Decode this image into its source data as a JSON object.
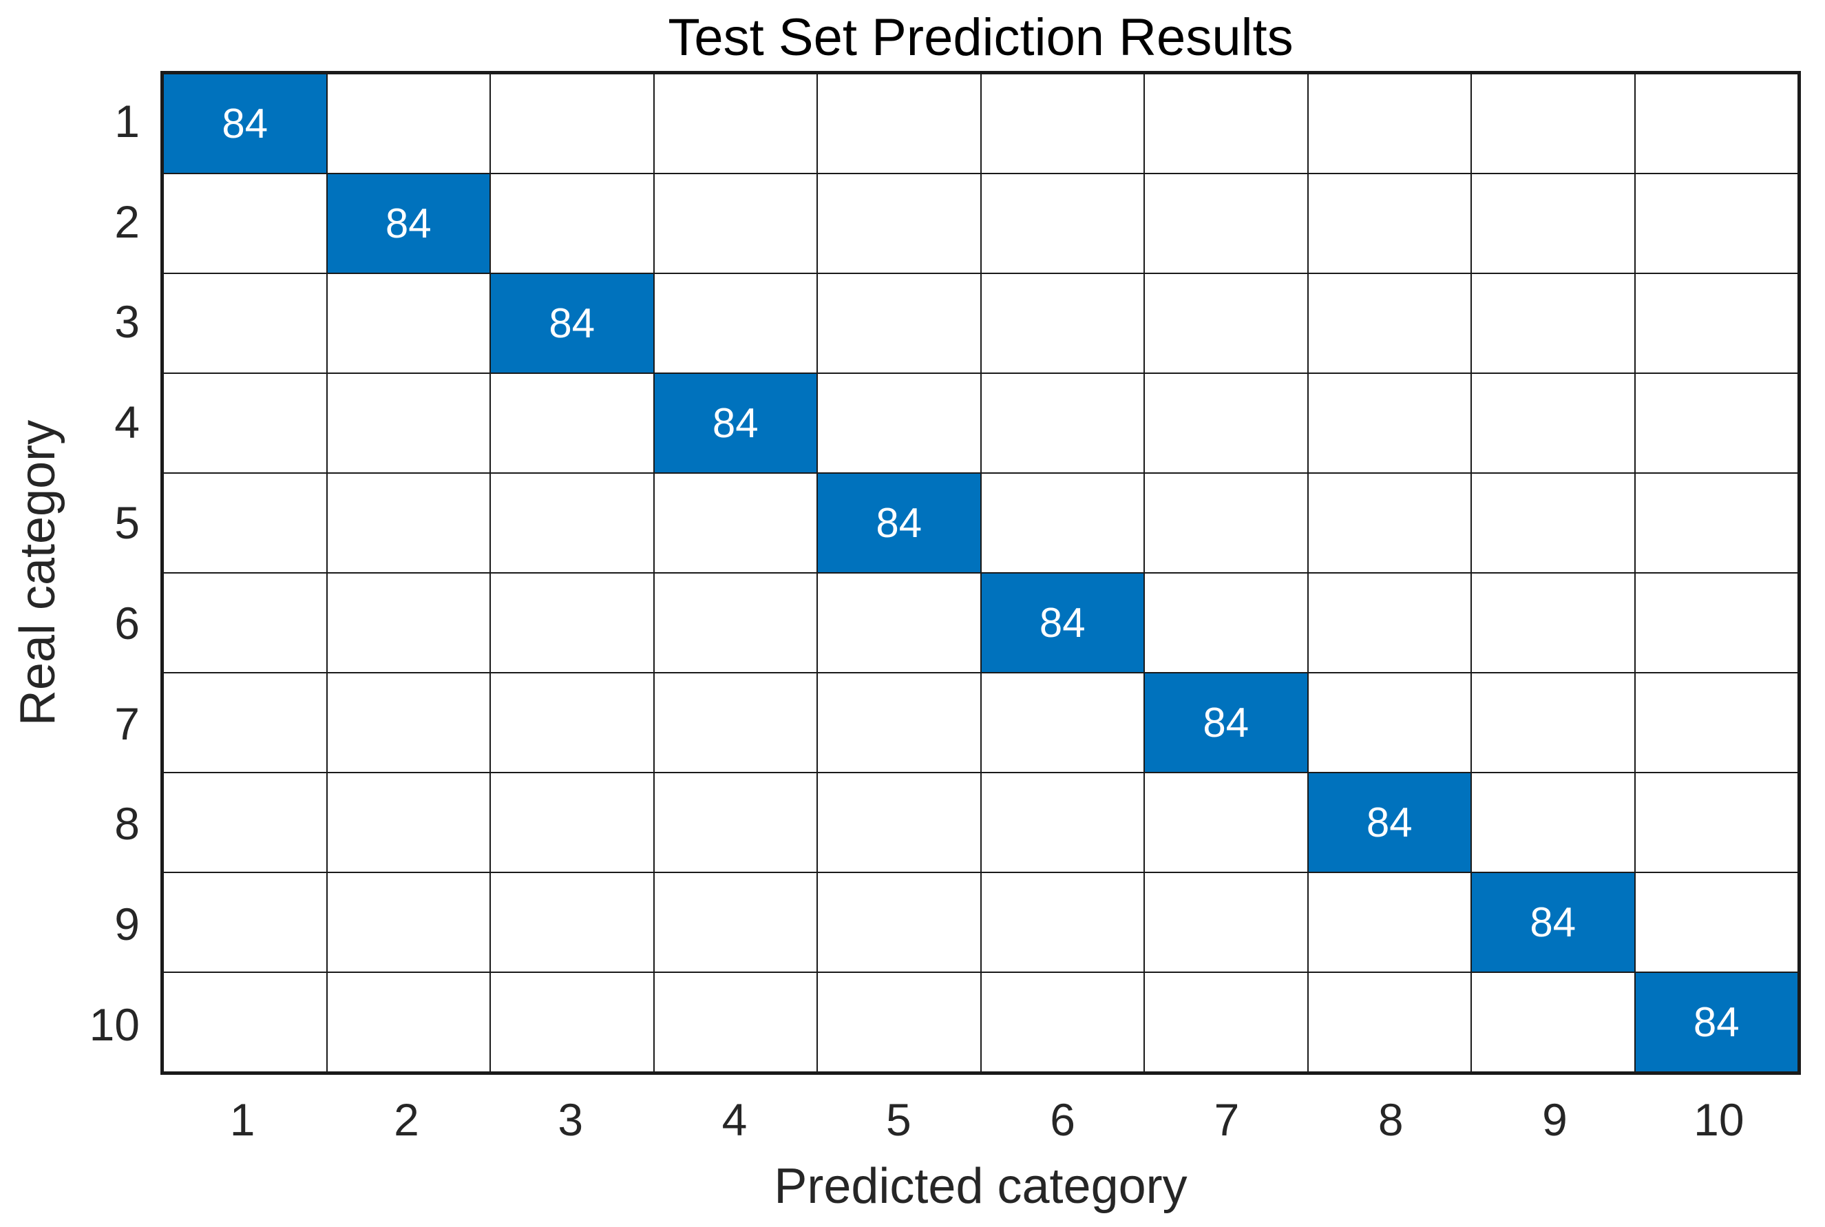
{
  "chart_data": {
    "type": "heatmap",
    "title": "Test Set Prediction Results",
    "xlabel": "Predicted category",
    "ylabel": "Real category",
    "x_tick_labels": [
      "1",
      "2",
      "3",
      "4",
      "5",
      "6",
      "7",
      "8",
      "9",
      "10"
    ],
    "y_tick_labels": [
      "1",
      "2",
      "3",
      "4",
      "5",
      "6",
      "7",
      "8",
      "9",
      "10"
    ],
    "matrix": [
      [
        84,
        0,
        0,
        0,
        0,
        0,
        0,
        0,
        0,
        0
      ],
      [
        0,
        84,
        0,
        0,
        0,
        0,
        0,
        0,
        0,
        0
      ],
      [
        0,
        0,
        84,
        0,
        0,
        0,
        0,
        0,
        0,
        0
      ],
      [
        0,
        0,
        0,
        84,
        0,
        0,
        0,
        0,
        0,
        0
      ],
      [
        0,
        0,
        0,
        0,
        84,
        0,
        0,
        0,
        0,
        0
      ],
      [
        0,
        0,
        0,
        0,
        0,
        84,
        0,
        0,
        0,
        0
      ],
      [
        0,
        0,
        0,
        0,
        0,
        0,
        84,
        0,
        0,
        0
      ],
      [
        0,
        0,
        0,
        0,
        0,
        0,
        0,
        84,
        0,
        0
      ],
      [
        0,
        0,
        0,
        0,
        0,
        0,
        0,
        0,
        84,
        0
      ],
      [
        0,
        0,
        0,
        0,
        0,
        0,
        0,
        0,
        0,
        84
      ]
    ],
    "zero_cells_blank": true,
    "grid_on": true,
    "legend": null,
    "colors": {
      "diagonal_fill": "#0072BD",
      "cell_value_text": "#FFFFFF",
      "off_diagonal_fill": "#FFFFFF",
      "grid_line": "#1A1A1A",
      "axis_text": "#262626",
      "background": "#FFFFFF"
    }
  }
}
